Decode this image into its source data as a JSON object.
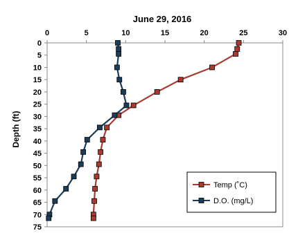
{
  "chart_data": {
    "type": "line",
    "title": "June 29, 2016",
    "xlabel": "",
    "ylabel": "Depth (ft)",
    "xlim": [
      0,
      30
    ],
    "ylim": [
      0,
      75
    ],
    "x_axis_position": "top",
    "y_axis_inverted": true,
    "x_ticks": [
      0,
      5,
      10,
      15,
      20,
      25,
      30
    ],
    "y_ticks": [
      0,
      5,
      10,
      15,
      20,
      25,
      30,
      35,
      40,
      45,
      50,
      55,
      60,
      65,
      70,
      75
    ],
    "grid": false,
    "legend_position": "bottom-right",
    "series": [
      {
        "name": "Temp (˚C)",
        "color": "#a83a32",
        "marker": "square",
        "points": [
          {
            "x": 24.4,
            "y": 0
          },
          {
            "x": 24.2,
            "y": 2.5
          },
          {
            "x": 24.0,
            "y": 4.5
          },
          {
            "x": 21.0,
            "y": 10
          },
          {
            "x": 17.0,
            "y": 15
          },
          {
            "x": 14.0,
            "y": 20
          },
          {
            "x": 11.0,
            "y": 25.5
          },
          {
            "x": 9.1,
            "y": 29.5
          },
          {
            "x": 7.6,
            "y": 34.5
          },
          {
            "x": 7.1,
            "y": 39.5
          },
          {
            "x": 6.8,
            "y": 44.5
          },
          {
            "x": 6.6,
            "y": 49.5
          },
          {
            "x": 6.3,
            "y": 54.5
          },
          {
            "x": 6.1,
            "y": 59.5
          },
          {
            "x": 6.0,
            "y": 64.5
          },
          {
            "x": 5.9,
            "y": 70
          },
          {
            "x": 5.9,
            "y": 71.5
          }
        ]
      },
      {
        "name": "D.O. (mg/L)",
        "color": "#1c3d5a",
        "marker": "square",
        "points": [
          {
            "x": 9.0,
            "y": 0
          },
          {
            "x": 9.1,
            "y": 2.5
          },
          {
            "x": 9.1,
            "y": 4.5
          },
          {
            "x": 8.9,
            "y": 10
          },
          {
            "x": 9.2,
            "y": 15
          },
          {
            "x": 9.7,
            "y": 20
          },
          {
            "x": 10.1,
            "y": 25.5
          },
          {
            "x": 8.6,
            "y": 29.5
          },
          {
            "x": 6.7,
            "y": 34.5
          },
          {
            "x": 5.1,
            "y": 39.5
          },
          {
            "x": 4.6,
            "y": 44.5
          },
          {
            "x": 4.3,
            "y": 49.5
          },
          {
            "x": 3.4,
            "y": 54.5
          },
          {
            "x": 2.4,
            "y": 59.5
          },
          {
            "x": 1.0,
            "y": 64.5
          },
          {
            "x": 0.3,
            "y": 70
          },
          {
            "x": 0.2,
            "y": 71.5
          }
        ]
      }
    ]
  }
}
